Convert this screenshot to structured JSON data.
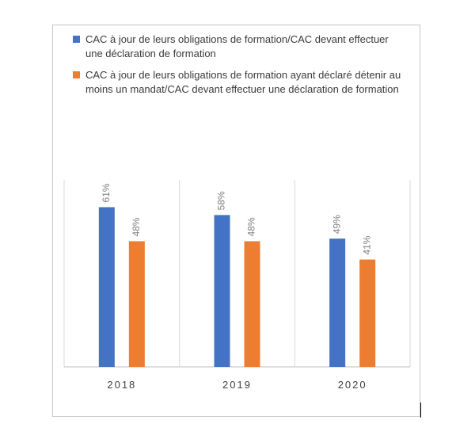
{
  "chart_data": {
    "type": "bar",
    "title": "",
    "xlabel": "",
    "ylabel": "",
    "ylim": [
      0,
      70
    ],
    "grid": false,
    "legend_position": "top",
    "categories": [
      "2018",
      "2019",
      "2020"
    ],
    "series": [
      {
        "name": "CAC à jour de leurs obligations de formation/CAC devant effectuer une déclaration de formation",
        "color": "#4472c4",
        "values": [
          61,
          58,
          49
        ],
        "labels": [
          "61%",
          "58%",
          "49%"
        ]
      },
      {
        "name": "CAC à jour de leurs obligations de formation ayant déclaré détenir au moins un mandat/CAC devant effectuer une déclaration de formation",
        "color": "#ed7d31",
        "values": [
          48,
          48,
          41
        ],
        "labels": [
          "48%",
          "48%",
          "41%"
        ]
      }
    ]
  }
}
